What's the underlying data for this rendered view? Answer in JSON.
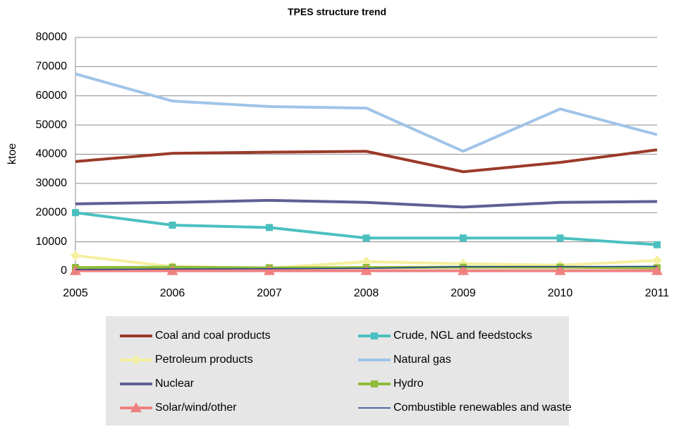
{
  "chart_data": {
    "type": "line",
    "title": "TPES structure trend",
    "y_label": "ktoe",
    "x": [
      2005,
      2006,
      2007,
      2008,
      2009,
      2010,
      2011
    ],
    "xlim": [
      2005,
      2011
    ],
    "xticks": [
      2005,
      2006,
      2007,
      2008,
      2009,
      2010,
      2011
    ],
    "ylim": [
      0,
      80000
    ],
    "yticks": [
      0,
      10000,
      20000,
      30000,
      40000,
      50000,
      60000,
      70000,
      80000
    ],
    "grid": true,
    "legend": "bottom",
    "series": [
      {
        "name": "Coal and coal products",
        "color": "#9b3a2a",
        "marker": "none",
        "values": [
          37500,
          40300,
          40700,
          41000,
          34000,
          37200,
          41500
        ]
      },
      {
        "name": "Crude, NGL and feedstocks",
        "color": "#4bc0c0",
        "marker": "square",
        "values": [
          20000,
          15700,
          14900,
          11300,
          11300,
          11300,
          9000
        ]
      },
      {
        "name": "Petroleum products",
        "color": "#f5f0a0",
        "marker": "diamond",
        "values": [
          5300,
          1500,
          1000,
          3200,
          2500,
          2000,
          3600
        ]
      },
      {
        "name": "Natural gas",
        "color": "#a0c4e8",
        "marker": "none",
        "values": [
          67500,
          58200,
          56300,
          55800,
          41000,
          55500,
          46700
        ]
      },
      {
        "name": "Nuclear",
        "color": "#5f5f96",
        "marker": "none",
        "values": [
          23000,
          23500,
          24200,
          23500,
          21900,
          23500,
          23800
        ]
      },
      {
        "name": "Hydro",
        "color": "#8fbc3a",
        "marker": "square",
        "values": [
          1200,
          1300,
          1100,
          1200,
          1300,
          1300,
          1100
        ]
      },
      {
        "name": "Solar/wind/other",
        "color": "#f08080",
        "marker": "triangle",
        "values": [
          100,
          100,
          100,
          100,
          100,
          100,
          100
        ]
      },
      {
        "name": "Combustible renewables and waste",
        "color": "#1f3c8c",
        "marker": "none",
        "thin": true,
        "values": [
          500,
          700,
          800,
          900,
          1500,
          1500,
          1600
        ]
      }
    ]
  }
}
